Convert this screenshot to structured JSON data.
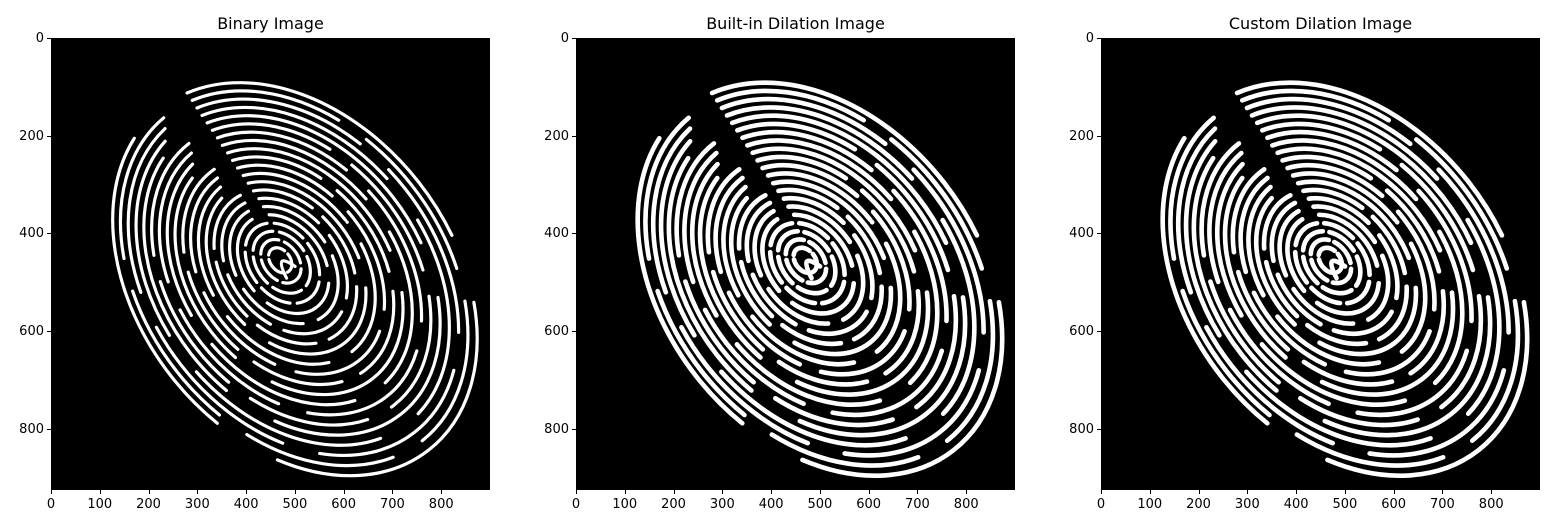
{
  "figure": {
    "panels": [
      {
        "title": "Binary Image",
        "ridge_width": 1.0
      },
      {
        "title": "Built-in Dilation Image",
        "ridge_width": 1.45
      },
      {
        "title": "Custom Dilation Image",
        "ridge_width": 1.45
      }
    ],
    "x_ticks": [
      "0",
      "100",
      "200",
      "300",
      "400",
      "500",
      "600",
      "700",
      "800"
    ],
    "y_ticks": [
      "0",
      "200",
      "400",
      "600",
      "800"
    ],
    "x_tick_values": [
      0,
      100,
      200,
      300,
      400,
      500,
      600,
      700,
      800
    ],
    "y_tick_values": [
      0,
      200,
      400,
      600,
      800
    ],
    "xlim": [
      0,
      900
    ],
    "ylim": [
      0,
      925
    ],
    "colors": {
      "background": "#000000",
      "ridge": "#ffffff"
    }
  }
}
